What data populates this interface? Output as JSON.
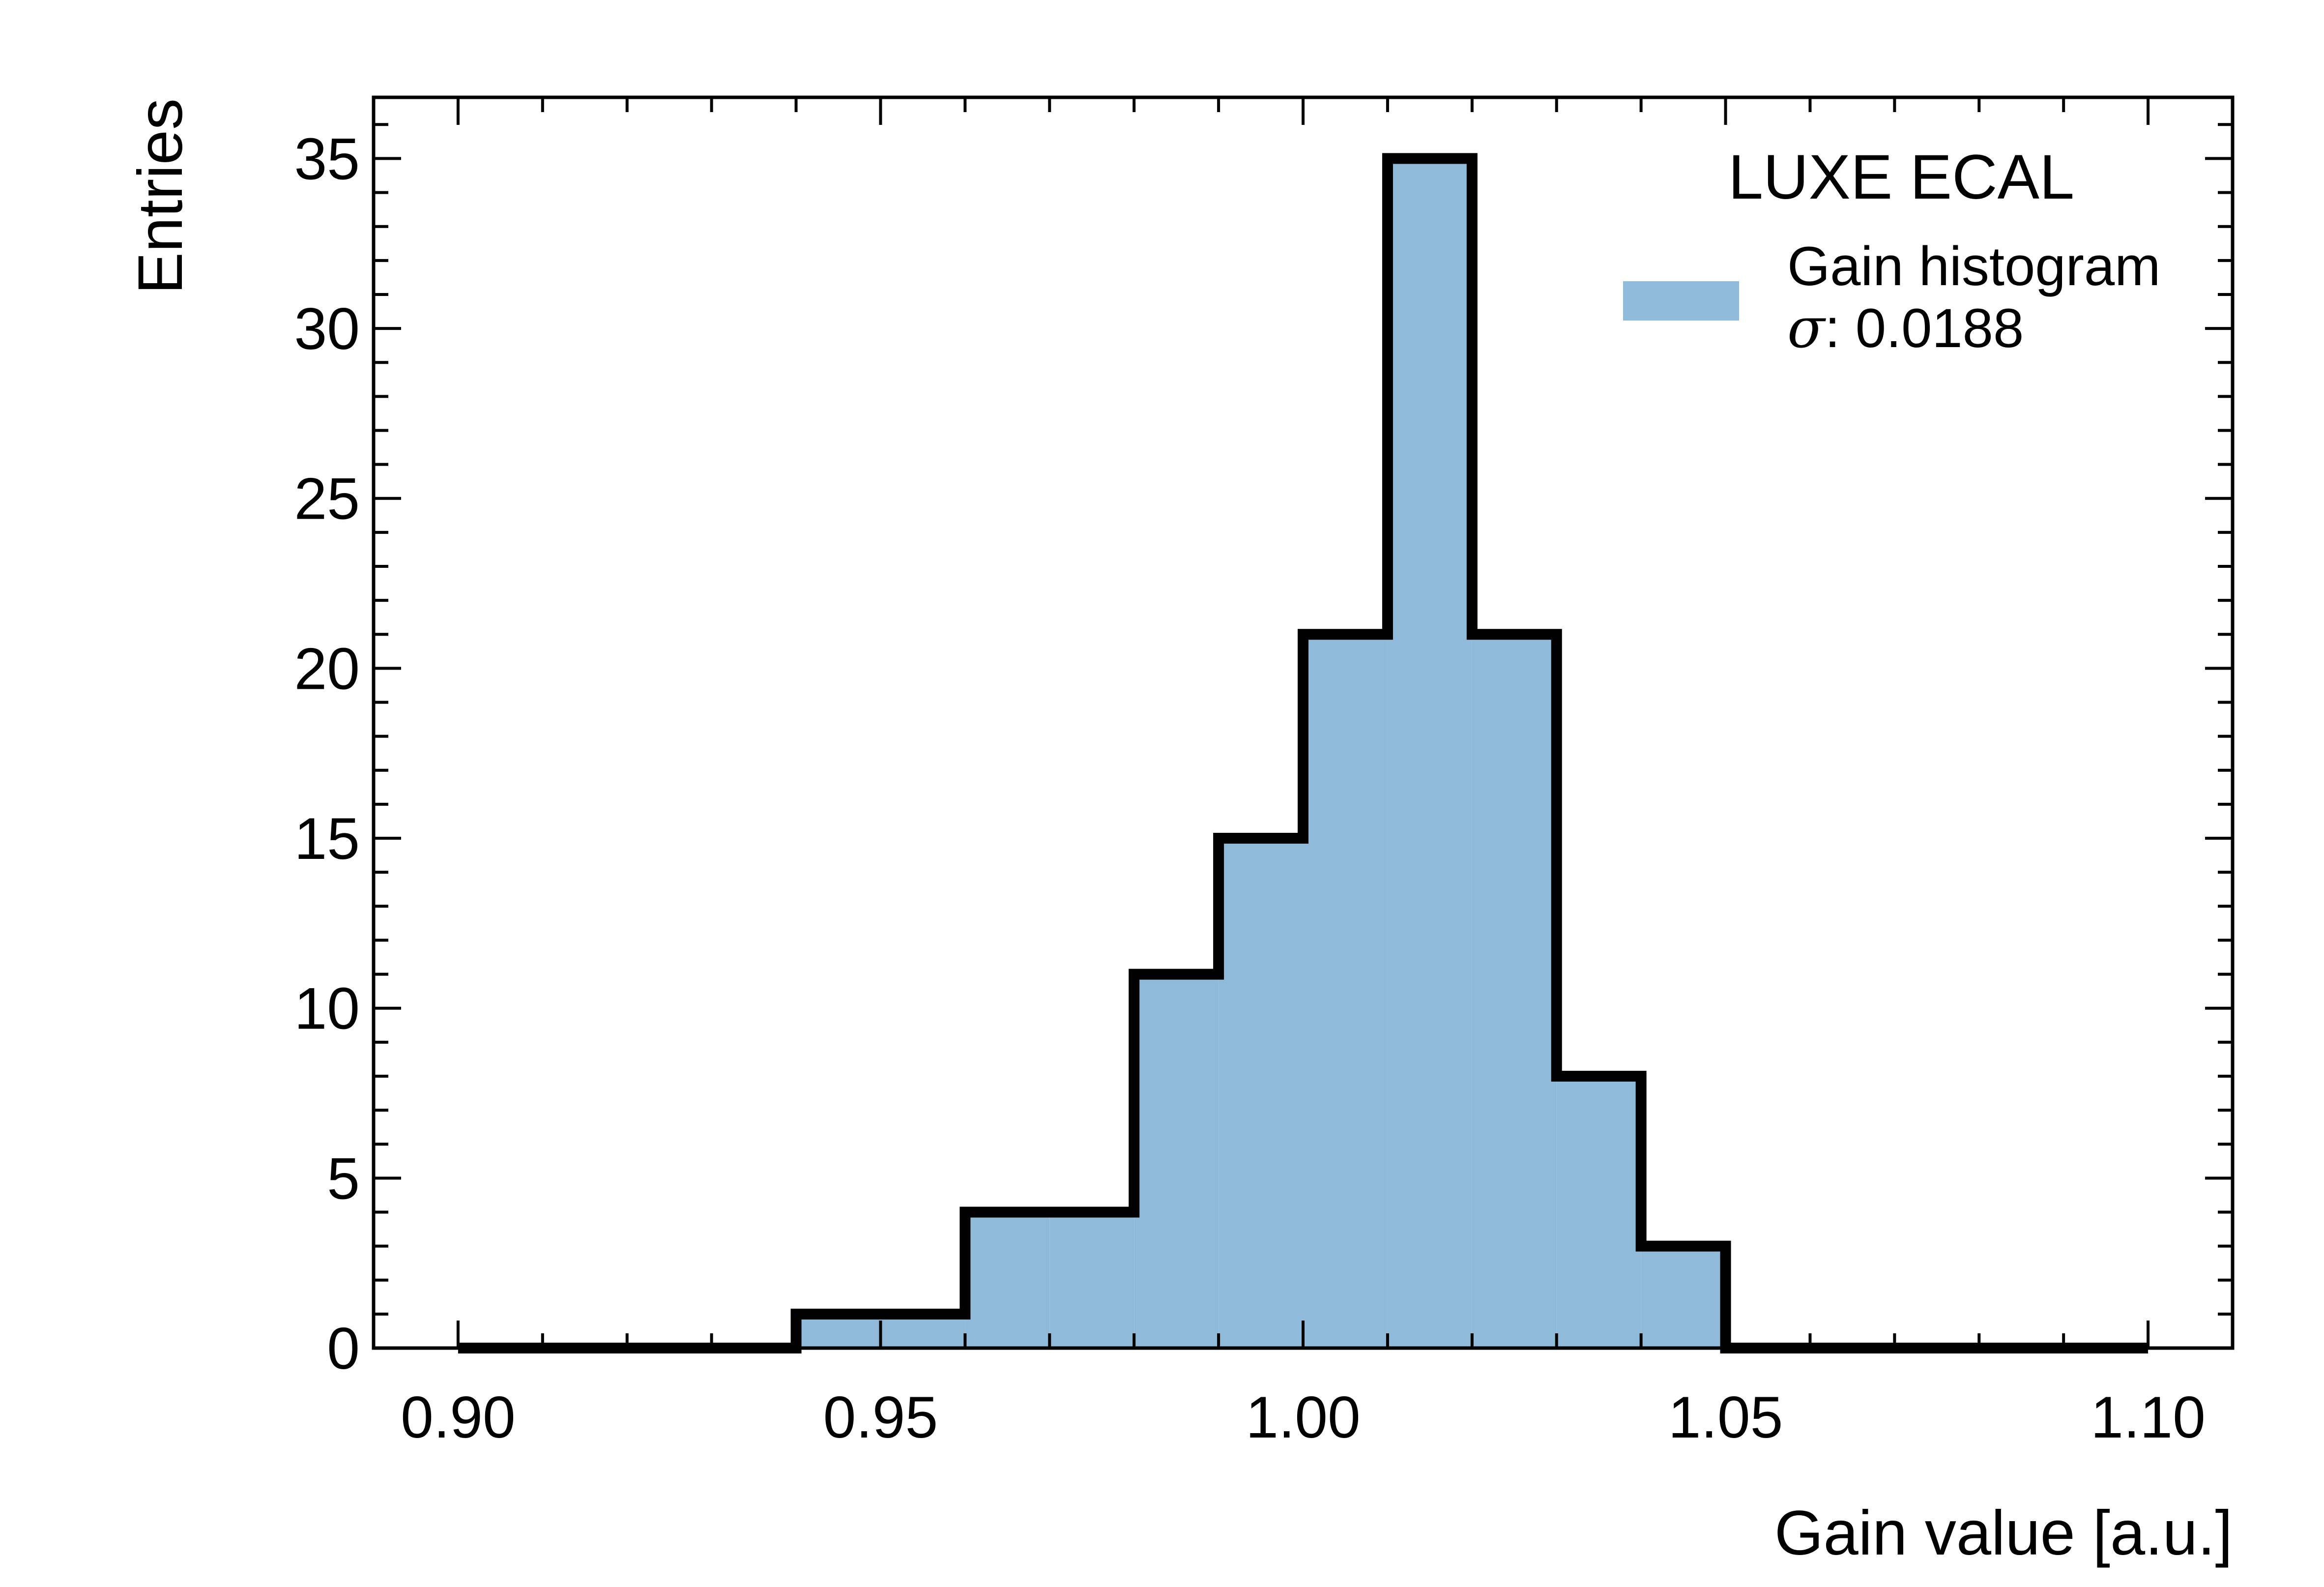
{
  "chart_data": {
    "type": "bar",
    "style": "step-filled-histogram",
    "xlabel": "Gain value [a.u.]",
    "ylabel": "Entries",
    "xlim": [
      0.89,
      1.11
    ],
    "ylim": [
      0,
      36.8
    ],
    "x_major_ticks": [
      0.9,
      0.95,
      1.0,
      1.05,
      1.1
    ],
    "x_tick_labels": [
      "0.90",
      "0.95",
      "1.00",
      "1.05",
      "1.10"
    ],
    "x_minor_step": 0.01,
    "y_major_ticks": [
      0,
      5,
      10,
      15,
      20,
      25,
      30,
      35
    ],
    "y_tick_labels": [
      "0",
      "5",
      "10",
      "15",
      "20",
      "25",
      "30",
      "35"
    ],
    "y_minor_step": 1,
    "bin_edges": [
      0.9,
      0.91,
      0.92,
      0.93,
      0.94,
      0.95,
      0.96,
      0.97,
      0.98,
      0.99,
      1.0,
      1.01,
      1.02,
      1.03,
      1.04,
      1.05,
      1.06,
      1.07,
      1.08,
      1.09,
      1.1
    ],
    "values": [
      0,
      0,
      0,
      0,
      1,
      1,
      4,
      4,
      11,
      15,
      21,
      35,
      21,
      8,
      3,
      0,
      0,
      0,
      0,
      0
    ],
    "fill_color": "#8fbad9",
    "edge_color": "#000000",
    "grid": false,
    "experiment_label": "LUXE ECAL",
    "legend": {
      "placement": "top-right",
      "entries": [
        {
          "label": "Gain histogram",
          "sigma_symbol": "σ",
          "sigma_value": ": 0.0188",
          "color": "#8fbad9"
        }
      ]
    }
  }
}
